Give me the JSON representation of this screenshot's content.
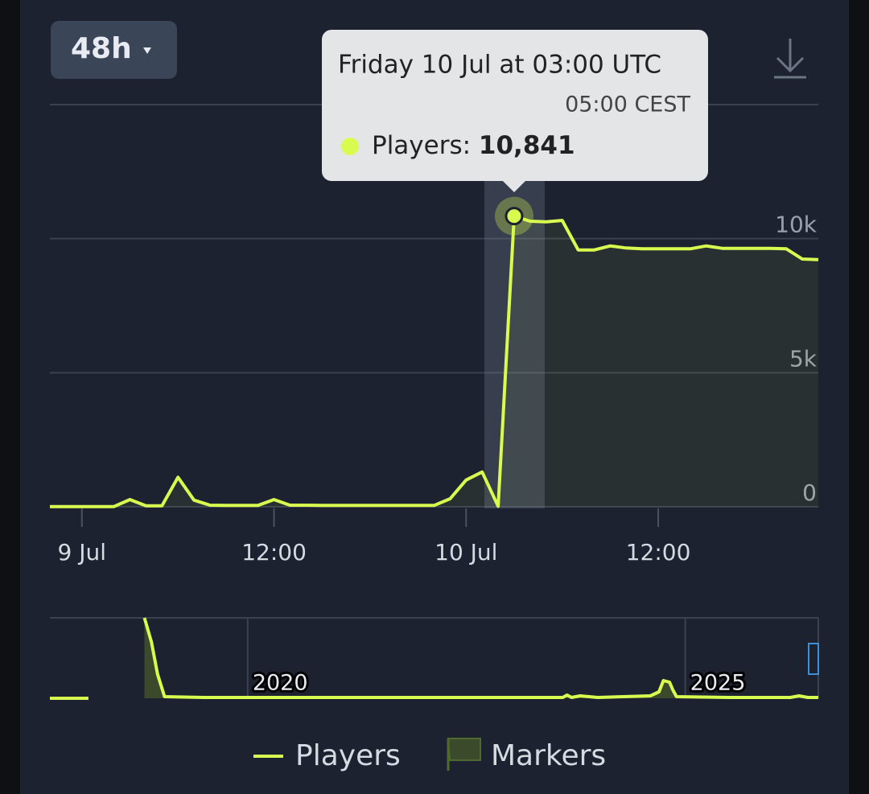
{
  "chart_data": [
    {
      "type": "line",
      "range_selector": "48h",
      "x": [
        -2,
        -1,
        0,
        1,
        2,
        3,
        4,
        5,
        6,
        7,
        8,
        9,
        10,
        11,
        12,
        13,
        14,
        15,
        16,
        17,
        18,
        19,
        20,
        21,
        22,
        23,
        24,
        25,
        26,
        27,
        28,
        29,
        30,
        31,
        32,
        33,
        34,
        35,
        36,
        37,
        38,
        39,
        40,
        41,
        42,
        43,
        44,
        45,
        46
      ],
      "xlim": [
        -2,
        46
      ],
      "xticks": [
        {
          "value": 0,
          "label": "9 Jul"
        },
        {
          "value": 12,
          "label": "12:00"
        },
        {
          "value": 24,
          "label": "10 Jul"
        },
        {
          "value": 36,
          "label": "12:00"
        }
      ],
      "ylim": [
        0,
        15000
      ],
      "yticks": [
        0,
        {
          "value": 5000,
          "label": "5k"
        },
        {
          "value": 10000,
          "label": "10k"
        }
      ],
      "grid": true,
      "series": [
        {
          "name": "Players",
          "color": "#d9fb4f",
          "values": [
            10,
            10,
            10,
            10,
            10,
            270,
            40,
            40,
            1100,
            250,
            60,
            50,
            50,
            50,
            270,
            60,
            60,
            55,
            55,
            50,
            50,
            50,
            50,
            50,
            50,
            300,
            1000,
            1300,
            20,
            10841,
            10650,
            10630,
            10680,
            9580,
            9580,
            9730,
            9650,
            9620,
            9620,
            9620,
            9620,
            9730,
            9640,
            9640,
            9640,
            9640,
            9620,
            9240,
            9220
          ]
        }
      ],
      "tooltip": {
        "x": 27,
        "title": "Friday 10 Jul at 03:00 UTC",
        "subtitle": "05:00 CEST",
        "label": "Players:",
        "value_label": "10,841"
      }
    },
    {
      "type": "line",
      "x": [
        2017.74,
        2018.18,
        2018.5,
        2018.82,
        2018.9,
        2018.97,
        2019.05,
        2019.5,
        2020,
        2021,
        2022,
        2023,
        2023.6,
        2023.65,
        2023.7,
        2023.8,
        2024,
        2024.6,
        2024.7,
        2024.75,
        2024.82,
        2024.86,
        2024.9,
        2025.5,
        2026.2,
        2026.3,
        2026.4,
        2026.52
      ],
      "values": [
        0,
        0,
        null,
        100,
        70,
        30,
        2,
        1,
        1,
        1,
        1,
        1,
        1,
        4,
        1,
        3,
        1,
        3,
        8,
        22,
        20,
        10,
        2,
        1,
        1,
        3,
        1,
        1
      ],
      "xlim": [
        2017.74,
        2026.52
      ],
      "xticks": [
        2020,
        2025
      ],
      "ylim": [
        0,
        100
      ],
      "color": "#d9fb4f",
      "markers": {
        "name": "Markers",
        "color": "#3b4a2a"
      }
    }
  ]
}
